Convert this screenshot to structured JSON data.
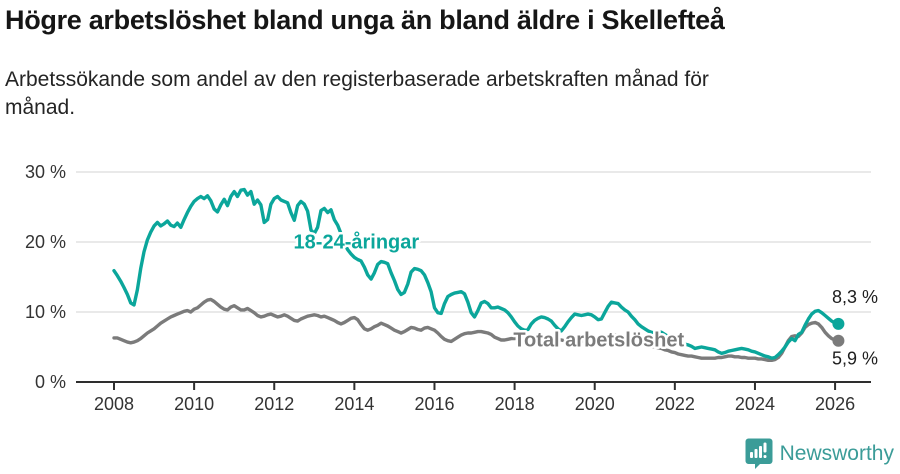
{
  "header": {
    "title": "Högre arbetslöshet bland unga än bland äldre i Skellefteå",
    "subtitle_lines": [
      "Arbetssökande som andel av den registerbaserade arbetskraften månad för",
      "månad."
    ]
  },
  "footer": {
    "brand": "Newsworthy",
    "brand_color": "#3b9c98",
    "logo_icon": "speech-bubble-bar-chart-exclamation"
  },
  "chart_data": {
    "type": "line",
    "title": "Högre arbetslöshet bland unga än bland äldre i Skellefteå",
    "subtitle": "Arbetssökande som andel av den registerbaserade arbetskraften månad för månad.",
    "grid": true,
    "x_axis": {
      "ticks": [
        2008,
        2010,
        2012,
        2014,
        2016,
        2018,
        2020,
        2022,
        2024,
        2026
      ],
      "range": [
        2007.1,
        2026.9
      ]
    },
    "y_axis": {
      "tick_values": [
        0,
        10,
        20,
        30
      ],
      "tick_labels": [
        "0 %",
        "10 %",
        "20 %",
        "30 %"
      ],
      "range": [
        0,
        32
      ]
    },
    "annotations": [
      {
        "text": "18-24-åringar",
        "x": 2014.05,
        "y": 20.1,
        "color": "#0ba69b"
      },
      {
        "text": "Total arbetslöshet",
        "x": 2020.1,
        "y": 6.1,
        "color": "#7b7b7b"
      }
    ],
    "series": [
      {
        "name": "18-24-åringar",
        "color": "#0ba69b",
        "start_year": 2008,
        "interval_months": 1,
        "end_label": "8,3 %",
        "values": [
          15.9,
          15.2,
          14.4,
          13.5,
          12.5,
          11.3,
          11.0,
          13.2,
          16.2,
          18.6,
          20.3,
          21.4,
          22.3,
          22.8,
          22.3,
          22.6,
          23.0,
          22.4,
          22.2,
          22.7,
          22.1,
          23.2,
          24.2,
          25.1,
          25.8,
          26.2,
          26.5,
          26.2,
          26.6,
          25.9,
          24.7,
          24.3,
          25.3,
          26.1,
          25.2,
          26.5,
          27.2,
          26.5,
          27.4,
          27.5,
          26.7,
          27.2,
          25.4,
          26.0,
          25.3,
          22.8,
          23.2,
          25.4,
          26.2,
          26.5,
          26.0,
          25.8,
          25.6,
          24.2,
          23.1,
          25.2,
          25.8,
          25.4,
          24.4,
          21.7,
          21.2,
          22.1,
          24.5,
          24.8,
          24.2,
          24.6,
          23.2,
          22.4,
          21.2,
          19.8,
          18.9,
          18.3,
          17.8,
          17.5,
          17.3,
          16.4,
          15.3,
          14.7,
          15.6,
          16.8,
          17.2,
          17.1,
          16.9,
          15.6,
          14.5,
          13.2,
          12.5,
          12.8,
          14.0,
          15.7,
          16.2,
          16.1,
          15.9,
          15.3,
          14.2,
          12.9,
          10.6,
          9.9,
          9.8,
          11.2,
          12.2,
          12.5,
          12.7,
          12.8,
          12.9,
          12.6,
          11.4,
          9.9,
          9.3,
          10.2,
          11.3,
          11.5,
          11.2,
          10.6,
          10.6,
          10.7,
          10.5,
          10.3,
          9.9,
          9.3,
          8.6,
          8.0,
          7.6,
          7.4,
          7.5,
          8.3,
          8.8,
          9.1,
          9.3,
          9.2,
          9.0,
          8.7,
          8.1,
          7.6,
          7.3,
          7.9,
          8.6,
          9.2,
          9.7,
          9.6,
          9.5,
          9.6,
          9.7,
          9.6,
          9.3,
          8.9,
          9.0,
          9.9,
          10.8,
          11.4,
          11.3,
          11.2,
          10.7,
          10.3,
          10.0,
          9.4,
          8.9,
          8.3,
          7.9,
          7.6,
          7.3,
          7.1,
          7.0,
          7.2,
          7.1,
          6.8,
          6.5,
          6.2,
          5.9,
          5.6,
          5.5,
          5.4,
          5.3,
          5.1,
          4.8,
          4.9,
          5.0,
          4.9,
          4.8,
          4.7,
          4.6,
          4.3,
          4.1,
          4.2,
          4.4,
          4.5,
          4.6,
          4.7,
          4.8,
          4.7,
          4.6,
          4.4,
          4.3,
          4.1,
          3.9,
          3.7,
          3.6,
          3.4,
          3.5,
          3.9,
          4.4,
          5.0,
          5.7,
          6.2,
          5.9,
          6.8,
          7.1,
          8.1,
          9.0,
          9.7,
          10.1,
          10.2,
          9.9,
          9.5,
          9.1,
          8.7,
          8.4,
          8.3
        ]
      },
      {
        "name": "Total arbetslöshet",
        "color": "#7b7b7b",
        "start_year": 2008,
        "interval_months": 1,
        "end_label": "5,9 %",
        "values": [
          6.3,
          6.3,
          6.1,
          5.9,
          5.7,
          5.6,
          5.7,
          5.9,
          6.2,
          6.6,
          7.0,
          7.3,
          7.6,
          8.0,
          8.4,
          8.7,
          9.0,
          9.3,
          9.5,
          9.7,
          9.9,
          10.1,
          10.2,
          10.0,
          10.4,
          10.6,
          11.0,
          11.4,
          11.7,
          11.8,
          11.5,
          11.1,
          10.7,
          10.4,
          10.3,
          10.7,
          10.9,
          10.6,
          10.3,
          10.3,
          10.5,
          10.2,
          9.9,
          9.5,
          9.3,
          9.4,
          9.6,
          9.7,
          9.5,
          9.3,
          9.4,
          9.6,
          9.4,
          9.1,
          8.8,
          8.7,
          9.0,
          9.2,
          9.4,
          9.5,
          9.6,
          9.5,
          9.3,
          9.4,
          9.2,
          9.0,
          8.8,
          8.5,
          8.3,
          8.5,
          8.8,
          9.1,
          9.2,
          8.9,
          8.2,
          7.6,
          7.4,
          7.6,
          7.9,
          8.1,
          8.4,
          8.2,
          8.0,
          7.7,
          7.4,
          7.2,
          7.0,
          7.2,
          7.5,
          7.8,
          7.7,
          7.5,
          7.4,
          7.7,
          7.8,
          7.6,
          7.4,
          7.0,
          6.5,
          6.1,
          5.9,
          5.8,
          6.1,
          6.4,
          6.7,
          6.9,
          7.0,
          7.0,
          7.1,
          7.2,
          7.2,
          7.1,
          7.0,
          6.8,
          6.4,
          6.2,
          6.0,
          6.0,
          6.1,
          6.2,
          6.2,
          6.3,
          6.4,
          6.3,
          6.2,
          6.1,
          6.0,
          6.1,
          6.2,
          6.3,
          6.3,
          6.3,
          6.2,
          6.1,
          6.0,
          5.9,
          5.8,
          5.7,
          5.6,
          5.7,
          5.8,
          5.8,
          5.9,
          6.0,
          6.0,
          6.1,
          6.3,
          6.5,
          6.6,
          6.7,
          6.7,
          6.6,
          6.4,
          6.3,
          6.2,
          6.1,
          6.0,
          5.8,
          5.6,
          5.4,
          5.3,
          5.1,
          5.0,
          4.9,
          4.8,
          4.6,
          4.5,
          4.3,
          4.2,
          4.0,
          3.9,
          3.8,
          3.7,
          3.7,
          3.6,
          3.5,
          3.4,
          3.4,
          3.4,
          3.4,
          3.4,
          3.5,
          3.5,
          3.6,
          3.7,
          3.7,
          3.6,
          3.6,
          3.5,
          3.5,
          3.4,
          3.4,
          3.4,
          3.3,
          3.3,
          3.2,
          3.1,
          3.1,
          3.2,
          3.5,
          4.1,
          5.0,
          5.9,
          6.5,
          6.6,
          6.5,
          7.0,
          7.8,
          8.2,
          8.4,
          8.5,
          8.3,
          7.8,
          7.1,
          6.6,
          6.2,
          6.0,
          5.9
        ]
      }
    ]
  }
}
